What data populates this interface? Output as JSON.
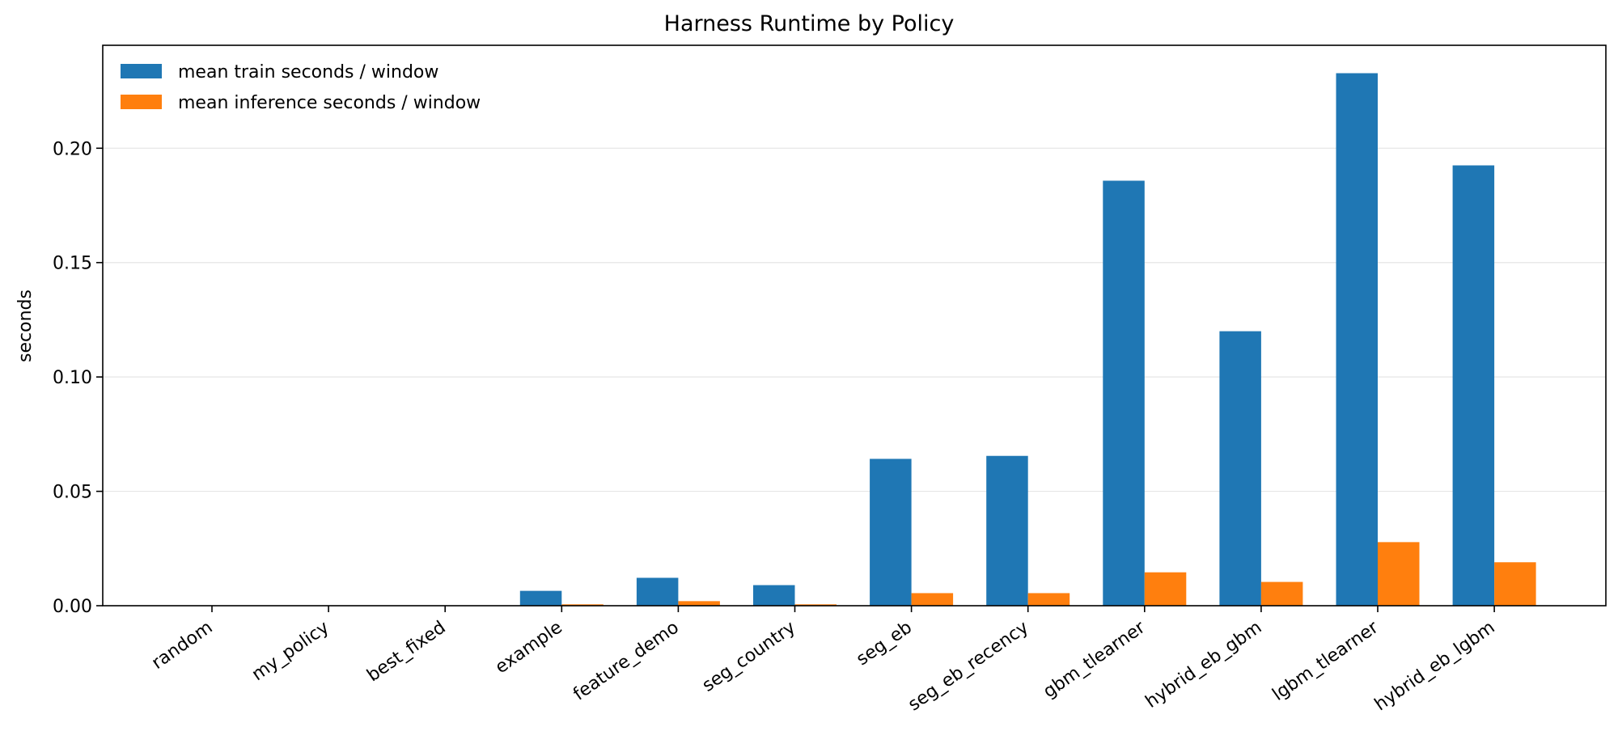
{
  "chart_data": {
    "type": "bar",
    "title": "Harness Runtime by Policy",
    "xlabel": "",
    "ylabel": "seconds",
    "ylim": [
      0,
      0.245
    ],
    "yticks": [
      "0.00",
      "0.05",
      "0.10",
      "0.15",
      "0.20"
    ],
    "ytick_values": [
      0,
      0.05,
      0.1,
      0.15,
      0.2
    ],
    "grid": "y",
    "legend_position": "top-left",
    "categories": [
      "random",
      "my_policy",
      "best_fixed",
      "example",
      "feature_demo",
      "seg_country",
      "seg_eb",
      "seg_eb_recency",
      "gbm_tlearner",
      "hybrid_eb_gbm",
      "lgbm_tlearner",
      "hybrid_eb_lgbm"
    ],
    "series": [
      {
        "name": "mean train seconds / window",
        "color": "#1f77b4",
        "values": [
          0.0,
          0.0,
          0.0,
          0.0065,
          0.0122,
          0.009,
          0.0642,
          0.0655,
          0.1858,
          0.12,
          0.2328,
          0.1925
        ]
      },
      {
        "name": "mean inference seconds / window",
        "color": "#ff7f0e",
        "values": [
          0.0,
          0.0,
          0.0,
          0.0006,
          0.002,
          0.0006,
          0.0055,
          0.0055,
          0.0146,
          0.0104,
          0.0278,
          0.019
        ]
      }
    ]
  }
}
